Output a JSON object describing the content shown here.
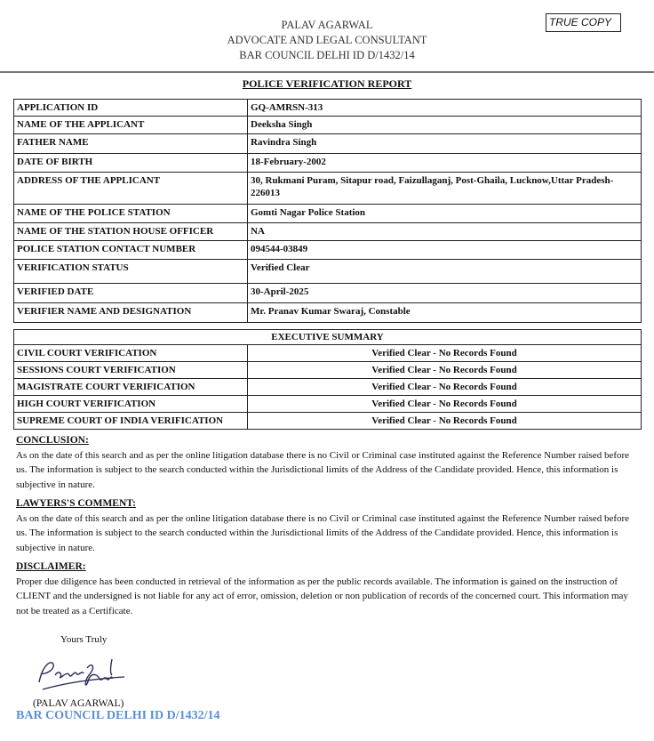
{
  "header": {
    "name": "PALAV AGARWAL",
    "designation": "ADVOCATE AND LEGAL CONSULTANT",
    "bar_id": "BAR COUNCIL DELHI ID D/1432/14",
    "stamp": "TRUE COPY"
  },
  "title": "POLICE VERIFICATION REPORT",
  "details": [
    {
      "label": "APPLICATION ID",
      "value": "GQ-AMRSN-313"
    },
    {
      "label": "NAME OF THE APPLICANT",
      "value": "Deeksha Singh"
    },
    {
      "label": "FATHER NAME",
      "value": "Ravindra Singh"
    },
    {
      "label": "DATE OF BIRTH",
      "value": "18-February-2002"
    },
    {
      "label": "ADDRESS OF THE APPLICANT",
      "value": "30, Rukmani Puram, Sitapur road, Faizullaganj, Post-Ghaila, Lucknow,Uttar Pradesh-226013"
    },
    {
      "label": "NAME OF THE POLICE STATION",
      "value": "Gomti Nagar Police Station"
    },
    {
      "label": "NAME OF THE STATION HOUSE OFFICER",
      "value": "NA"
    },
    {
      "label": "POLICE STATION CONTACT NUMBER",
      "value": "094544-03849"
    },
    {
      "label": "VERIFICATION STATUS",
      "value": "Verified Clear"
    },
    {
      "label": "VERIFIED DATE",
      "value": "30-April-2025"
    },
    {
      "label": "VERIFIER NAME AND DESIGNATION",
      "value": "Mr. Pranav Kumar Swaraj, Constable"
    }
  ],
  "summary": {
    "title": "EXECUTIVE SUMMARY",
    "rows": [
      {
        "label": "CIVIL COURT VERIFICATION",
        "value": "Verified Clear - No Records Found"
      },
      {
        "label": "SESSIONS COURT VERIFICATION",
        "value": "Verified Clear - No Records Found"
      },
      {
        "label": "MAGISTRATE COURT VERIFICATION",
        "value": "Verified Clear - No Records Found"
      },
      {
        "label": "HIGH COURT VERIFICATION",
        "value": "Verified Clear - No Records Found"
      },
      {
        "label": "SUPREME COURT OF INDIA VERIFICATION",
        "value": "Verified Clear - No Records Found"
      }
    ]
  },
  "conclusion": {
    "heading": "CONCLUSION:",
    "text": "As on the date of this search and as per the online litigation database there is no Civil or Criminal case instituted against the Reference Number raised before us. The information is subject to the search conducted within the Jurisdictional limits of the Address of the Candidate provided. Hence, this information is subjective in nature."
  },
  "lawyers_comment": {
    "heading": "LAWYERS'S COMMENT:",
    "text": "As on the date of this search and as per the online litigation database there is no Civil or Criminal case instituted against the Reference Number raised before us. The information is subject to the search conducted within the Jurisdictional limits of the Address of the Candidate provided. Hence, this information is subjective in nature."
  },
  "disclaimer": {
    "heading": "DISCLAIMER:",
    "text": "Proper due diligence has been conducted in retrieval of the information as per the public records available. The information is gained on the instruction of CLIENT and the undersigned is not liable for any act of error, omission, deletion or non publication of records of the concerned court. This information may not be treated as a Certificate."
  },
  "footer": {
    "closing": "Yours Truly",
    "signatory": "(PALAV AGARWAL)",
    "bar_id": "BAR COUNCIL DELHI ID D/1432/14",
    "signature": "Palav Agarwal"
  }
}
